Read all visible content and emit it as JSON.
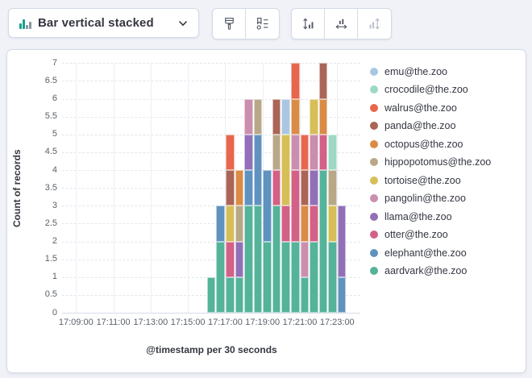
{
  "toolbar": {
    "chart_type": {
      "label": "Bar vertical stacked"
    },
    "buttons": [
      {
        "name": "brush-styling-button",
        "icon": "paint-brush-icon",
        "disabled": false
      },
      {
        "name": "legend-settings-button",
        "icon": "legend-list-icon",
        "disabled": false
      },
      {
        "name": "left-axis-button",
        "icon": "vertical-axis-arrows-icon",
        "disabled": false
      },
      {
        "name": "bottom-axis-button",
        "icon": "horizontal-axis-arrows-icon",
        "disabled": false
      },
      {
        "name": "right-axis-button",
        "icon": "vertical-axis-arrows-right-icon",
        "disabled": true
      }
    ]
  },
  "chart": {
    "y_axis": {
      "title": "Count of records",
      "ticks": [
        "0",
        "0.5",
        "1",
        "1.5",
        "2",
        "2.5",
        "3",
        "3.5",
        "4",
        "4.5",
        "5",
        "5.5",
        "6",
        "6.5",
        "7"
      ]
    },
    "x_axis": {
      "title": "@timestamp per 30 seconds",
      "ticks": [
        "17:09:00",
        "17:11:00",
        "17:13:00",
        "17:15:00",
        "17:17:00",
        "17:19:00",
        "17:21:00",
        "17:23:00"
      ]
    },
    "legend": [
      {
        "label": "emu@the.zoo",
        "color": "#A9C7E2"
      },
      {
        "label": "crocodile@the.zoo",
        "color": "#9CD9C4"
      },
      {
        "label": "walrus@the.zoo",
        "color": "#E7664C"
      },
      {
        "label": "panda@the.zoo",
        "color": "#AA6556"
      },
      {
        "label": "octopus@the.zoo",
        "color": "#DA8B45"
      },
      {
        "label": "hippopotomus@the.zoo",
        "color": "#B9A888"
      },
      {
        "label": "tortoise@the.zoo",
        "color": "#D6BF57"
      },
      {
        "label": "pangolin@the.zoo",
        "color": "#CA8EAE"
      },
      {
        "label": "llama@the.zoo",
        "color": "#9170B8"
      },
      {
        "label": "otter@the.zoo",
        "color": "#D36086"
      },
      {
        "label": "elephant@the.zoo",
        "color": "#6092C0"
      },
      {
        "label": "aardvark@the.zoo",
        "color": "#54B399"
      }
    ]
  },
  "chart_data": {
    "type": "bar",
    "stacked": true,
    "title": "",
    "xlabel": "@timestamp per 30 seconds",
    "ylabel": "Count of records",
    "ylim": [
      0,
      7
    ],
    "bucket_seconds": 30,
    "x": [
      "17:16:00",
      "17:16:30",
      "17:17:00",
      "17:17:30",
      "17:18:00",
      "17:18:30",
      "17:19:00",
      "17:19:30",
      "17:20:00",
      "17:20:30",
      "17:21:00",
      "17:21:30",
      "17:22:00",
      "17:22:30",
      "17:23:00"
    ],
    "series": [
      {
        "name": "aardvark@the.zoo",
        "color": "#54B399",
        "values": [
          1,
          2,
          1,
          1,
          3,
          3,
          2,
          3,
          2,
          2,
          1,
          2,
          4,
          2,
          0
        ]
      },
      {
        "name": "elephant@the.zoo",
        "color": "#6092C0",
        "values": [
          0,
          1,
          0,
          0,
          1,
          2,
          2,
          0,
          0,
          0,
          0,
          0,
          0,
          0,
          1
        ]
      },
      {
        "name": "otter@the.zoo",
        "color": "#D36086",
        "values": [
          0,
          0,
          1,
          0,
          0,
          0,
          0,
          1,
          1,
          2,
          0,
          1,
          1,
          0,
          0
        ]
      },
      {
        "name": "llama@the.zoo",
        "color": "#9170B8",
        "values": [
          0,
          0,
          0,
          1,
          1,
          0,
          0,
          0,
          0,
          0,
          0,
          1,
          0,
          0,
          2
        ]
      },
      {
        "name": "pangolin@the.zoo",
        "color": "#CA8EAE",
        "values": [
          0,
          0,
          0,
          0,
          1,
          0,
          0,
          0,
          0,
          1,
          1,
          1,
          0,
          0,
          0
        ]
      },
      {
        "name": "tortoise@the.zoo",
        "color": "#D6BF57",
        "values": [
          0,
          0,
          1,
          0,
          0,
          0,
          0,
          0,
          2,
          0,
          0,
          1,
          0,
          1,
          0
        ]
      },
      {
        "name": "hippopotomus@the.zoo",
        "color": "#B9A888",
        "values": [
          0,
          0,
          0,
          1,
          0,
          1,
          0,
          1,
          0,
          0,
          0,
          0,
          0,
          1,
          0
        ]
      },
      {
        "name": "octopus@the.zoo",
        "color": "#DA8B45",
        "values": [
          0,
          0,
          0,
          1,
          0,
          0,
          0,
          0,
          0,
          1,
          1,
          0,
          1,
          0,
          0
        ]
      },
      {
        "name": "panda@the.zoo",
        "color": "#AA6556",
        "values": [
          0,
          0,
          1,
          0,
          0,
          0,
          0,
          1,
          0,
          0,
          1,
          0,
          1,
          0,
          0
        ]
      },
      {
        "name": "walrus@the.zoo",
        "color": "#E7664C",
        "values": [
          0,
          0,
          1,
          0,
          0,
          0,
          0,
          0,
          0,
          1,
          1,
          0,
          0,
          0,
          0
        ]
      },
      {
        "name": "crocodile@the.zoo",
        "color": "#9CD9C4",
        "values": [
          0,
          0,
          0,
          0,
          0,
          0,
          0,
          0,
          0,
          0,
          0,
          0,
          0,
          1,
          0
        ]
      },
      {
        "name": "emu@the.zoo",
        "color": "#A9C7E2",
        "values": [
          0,
          0,
          0,
          0,
          0,
          0,
          0,
          0,
          1,
          0,
          0,
          0,
          0,
          0,
          0
        ]
      }
    ]
  }
}
